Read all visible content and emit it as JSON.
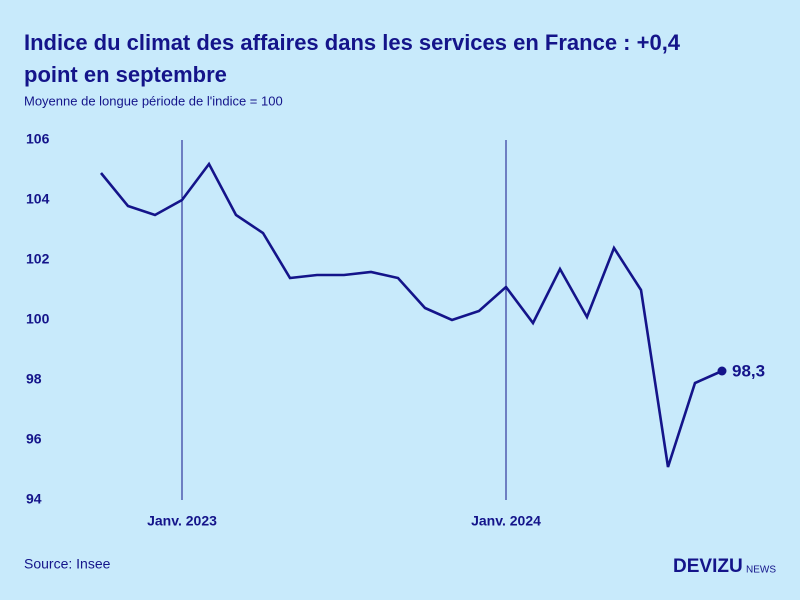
{
  "chart_data": {
    "type": "line",
    "title": "Indice du climat des affaires dans les services en France : +0,4 point en septembre",
    "subtitle": "Moyenne de longue période de l'indice = 100",
    "source": "Source: Insee",
    "logo": {
      "main": "DEVIZU",
      "suffix": "NEWS"
    },
    "x": [
      "2022-10",
      "2022-11",
      "2022-12",
      "2023-01",
      "2023-02",
      "2023-03",
      "2023-04",
      "2023-05",
      "2023-06",
      "2023-07",
      "2023-08",
      "2023-09",
      "2023-10",
      "2023-11",
      "2023-12",
      "2024-01",
      "2024-02",
      "2024-03",
      "2024-04",
      "2024-05",
      "2024-06",
      "2024-07",
      "2024-08",
      "2024-09"
    ],
    "series": [
      {
        "name": "Indice du climat des affaires",
        "color": "#14148a",
        "values": [
          104.9,
          103.8,
          103.5,
          104.0,
          105.2,
          103.5,
          102.9,
          101.4,
          101.5,
          101.5,
          101.6,
          101.4,
          100.4,
          100.0,
          100.3,
          101.1,
          99.9,
          101.7,
          100.1,
          102.4,
          101.0,
          95.1,
          97.9,
          98.3
        ],
        "value_labels": [
          null,
          null,
          null,
          null,
          null,
          null,
          null,
          null,
          null,
          null,
          null,
          null,
          null,
          null,
          null,
          null,
          null,
          null,
          null,
          null,
          null,
          null,
          null,
          "98,3"
        ]
      }
    ],
    "xlim": [
      "2022-09",
      "2024-11"
    ],
    "xticks": [
      {
        "value": "2023-01",
        "label": "Janv. 2023"
      },
      {
        "value": "2024-01",
        "label": "Janv. 2024"
      }
    ],
    "ylim": [
      94,
      106
    ],
    "yticks": [
      94,
      96,
      98,
      100,
      102,
      104,
      106
    ]
  }
}
